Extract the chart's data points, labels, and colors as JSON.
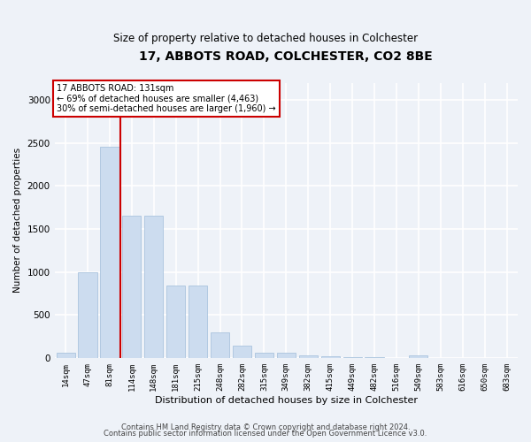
{
  "title": "17, ABBOTS ROAD, COLCHESTER, CO2 8BE",
  "subtitle": "Size of property relative to detached houses in Colchester",
  "xlabel": "Distribution of detached houses by size in Colchester",
  "ylabel": "Number of detached properties",
  "bar_color": "#ccdcef",
  "bar_edge_color": "#aac4de",
  "categories": [
    "14sqm",
    "47sqm",
    "81sqm",
    "114sqm",
    "148sqm",
    "181sqm",
    "215sqm",
    "248sqm",
    "282sqm",
    "315sqm",
    "349sqm",
    "382sqm",
    "415sqm",
    "449sqm",
    "482sqm",
    "516sqm",
    "549sqm",
    "583sqm",
    "616sqm",
    "650sqm",
    "683sqm"
  ],
  "values": [
    60,
    1000,
    2450,
    1650,
    1650,
    840,
    840,
    300,
    145,
    55,
    55,
    30,
    20,
    5,
    5,
    0,
    30,
    0,
    0,
    0,
    0
  ],
  "ylim": [
    0,
    3200
  ],
  "yticks": [
    0,
    500,
    1000,
    1500,
    2000,
    2500,
    3000
  ],
  "vline_x_index": 3,
  "vline_color": "#cc0000",
  "annotation_text": "17 ABBOTS ROAD: 131sqm\n← 69% of detached houses are smaller (4,463)\n30% of semi-detached houses are larger (1,960) →",
  "annotation_box_edge": "#cc0000",
  "footer1": "Contains HM Land Registry data © Crown copyright and database right 2024.",
  "footer2": "Contains public sector information licensed under the Open Government Licence v3.0.",
  "background_color": "#eef2f8",
  "grid_color": "#ffffff"
}
